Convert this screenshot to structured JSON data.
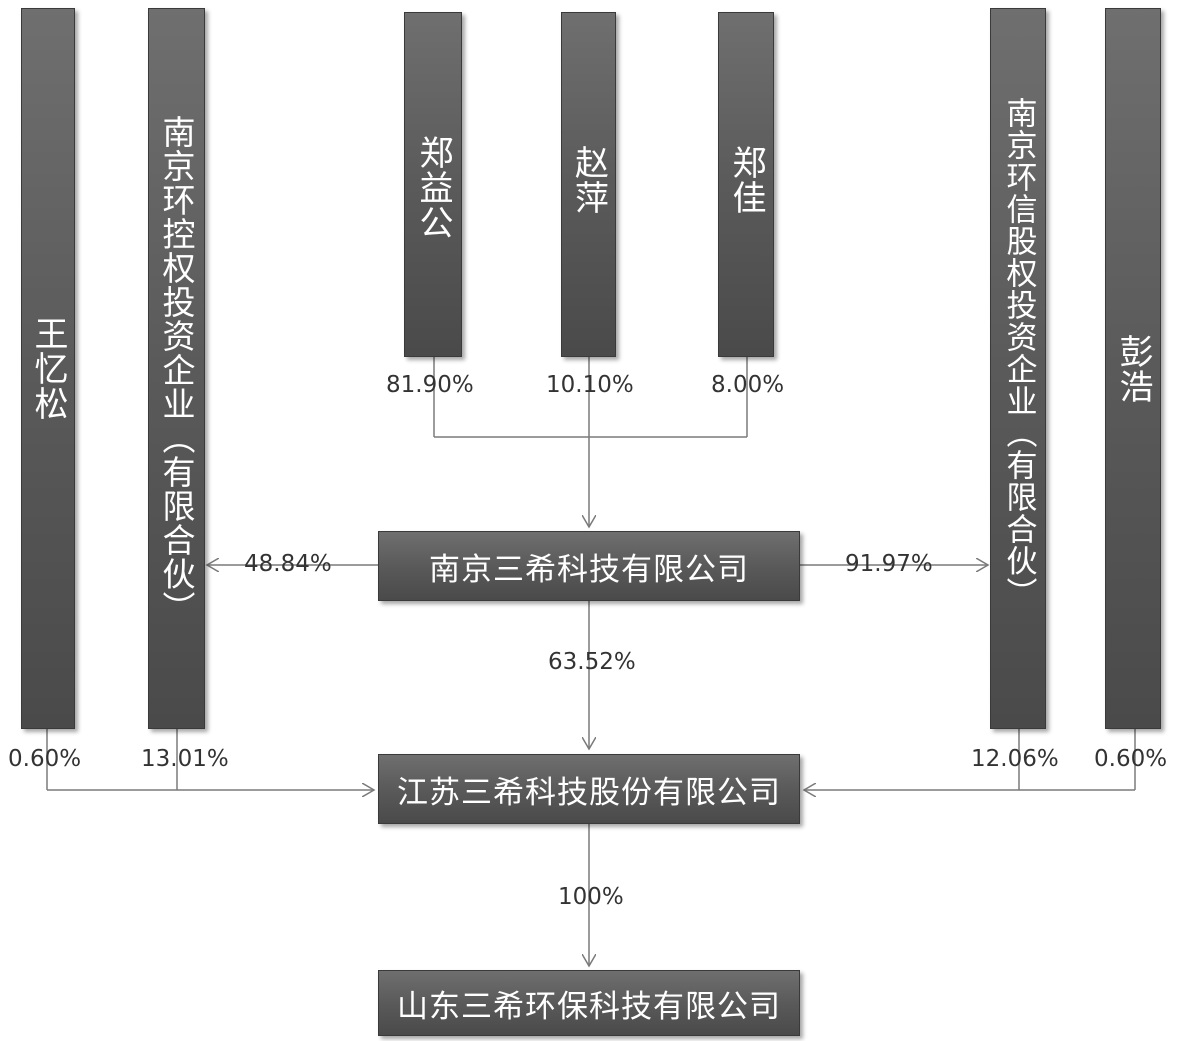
{
  "entities": {
    "wang": "王忆松",
    "nj_hk": "南京环控权投资企业（有限合伙）",
    "zheng_yg": "郑益公",
    "zhao_p": "赵萍",
    "zheng_j": "郑佳",
    "nj_hx": "南京环信股权投资企业（有限合伙）",
    "peng": "彭浩",
    "nj_sx": "南京三希科技有限公司",
    "js_sx": "江苏三希科技股份有限公司",
    "sd_sx": "山东三希环保科技有限公司"
  },
  "percentages": {
    "zheng_yg": "81.90%",
    "zhao_p": "10.10%",
    "zheng_j": "8.00%",
    "nj_sx_to_nj_hk": "48.84%",
    "nj_sx_to_nj_hx": "91.97%",
    "nj_sx_to_js_sx": "63.52%",
    "wang": "0.60%",
    "nj_hk": "13.01%",
    "nj_hx": "12.06%",
    "peng": "0.60%",
    "js_sx_to_sd_sx": "100%"
  },
  "colors": {
    "box_fill": "#5a5a5a",
    "line": "#7a7a7a",
    "text_white": "#ffffff",
    "label": "#333333"
  }
}
